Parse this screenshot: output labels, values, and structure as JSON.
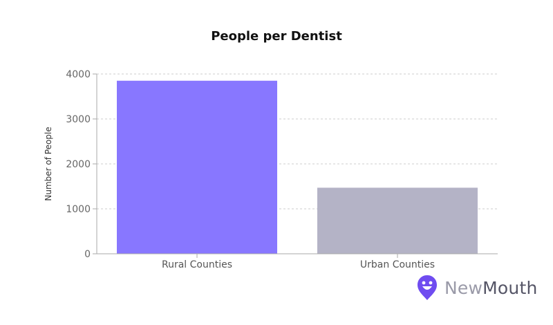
{
  "chart_data": {
    "type": "bar",
    "title": "People per Dentist",
    "xlabel": "",
    "ylabel": "Number of People",
    "categories": [
      "Rural Counties",
      "Urban Counties"
    ],
    "values": [
      3850,
      1470
    ],
    "bar_colors": [
      "#8877ff",
      "#b4b3c6"
    ],
    "ylim": [
      0,
      4000
    ],
    "yticks": [
      "0",
      "1000",
      "2000",
      "3000",
      "4000"
    ],
    "grid": true
  },
  "branding": {
    "logo_new": "New",
    "logo_mouth": "Mouth",
    "logo_color": "#6f4cf0",
    "icon": "smiley-pin-icon"
  }
}
